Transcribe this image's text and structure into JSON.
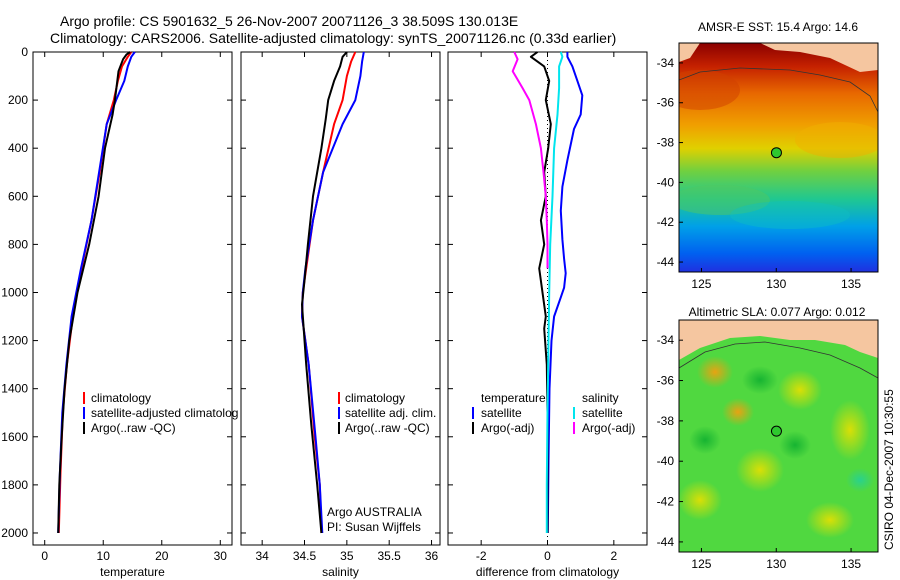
{
  "header": {
    "line1": "Argo profile: CS 5901632_5 26-Nov-2007 20071126_3 38.509S 130.013E",
    "line2": "Climatology: CARS2006. Satellite-adjusted climatology: synTS_20071126.nc (0.33d earlier)"
  },
  "side_label": "CSIRO 04-Dec-2007 10:30:55",
  "colors": {
    "climatology": "#ff0000",
    "satellite": "#0000ff",
    "argo": "#000000",
    "salinity_satellite": "#00e5ee",
    "salinity_argo": "#ff00ff",
    "land": "#f5c6a0"
  },
  "chart_data": [
    {
      "type": "line",
      "id": "temperature",
      "xlabel": "temperature",
      "ylabel": "",
      "xlim": [
        -2,
        32
      ],
      "ylim": [
        0,
        2050
      ],
      "y_reversed": true,
      "xticks": [
        0,
        10,
        20,
        30
      ],
      "yticks": [
        0,
        200,
        400,
        600,
        800,
        1000,
        1200,
        1400,
        1600,
        1800,
        2000
      ],
      "legend": [
        "climatology",
        "satellite-adjusted climatolog",
        "Argo(..raw -QC)"
      ],
      "series": [
        {
          "name": "climatology",
          "color": "#ff0000",
          "x": [
            14.8,
            14.2,
            13.2,
            12.5,
            11.8,
            10.6,
            9.4,
            8.0,
            6.3,
            4.8,
            3.8,
            3.1,
            2.7,
            2.4
          ],
          "y": [
            0,
            20,
            60,
            120,
            200,
            300,
            500,
            700,
            900,
            1100,
            1300,
            1500,
            1750,
            2000
          ]
        },
        {
          "name": "satellite-adjusted climatolog",
          "color": "#0000ff",
          "x": [
            15.4,
            14.8,
            14.2,
            13.6,
            12.2,
            10.6,
            9.3,
            8.0,
            6.2,
            4.6,
            3.7,
            3.0,
            2.6,
            2.3
          ],
          "y": [
            0,
            20,
            60,
            120,
            200,
            300,
            500,
            700,
            900,
            1100,
            1300,
            1500,
            1750,
            2000
          ]
        },
        {
          "name": "Argo(..raw -QC)",
          "color": "#000000",
          "x": [
            14.6,
            14.0,
            13.4,
            12.6,
            12.0,
            11.6,
            10.3,
            9.2,
            7.6,
            5.6,
            4.2,
            3.4,
            2.9,
            2.5,
            2.3
          ],
          "y": [
            0,
            10,
            30,
            80,
            200,
            260,
            400,
            600,
            800,
            1000,
            1200,
            1400,
            1600,
            1800,
            2000
          ]
        }
      ]
    },
    {
      "type": "line",
      "id": "salinity",
      "xlabel": "salinity",
      "ylabel": "",
      "xlim": [
        33.75,
        36.1
      ],
      "ylim": [
        0,
        2050
      ],
      "y_reversed": true,
      "xticks": [
        34,
        34.5,
        35,
        35.5,
        36
      ],
      "legend": [
        "climatology",
        "satellite adj. clim.",
        "Argo(..raw -QC)"
      ],
      "annotation": [
        "Argo AUSTRALIA",
        "PI: Susan Wijffels"
      ],
      "series": [
        {
          "name": "climatology",
          "color": "#ff0000",
          "x": [
            35.1,
            35.05,
            35.0,
            34.95,
            34.85,
            34.72,
            34.6,
            34.52,
            34.48,
            34.47,
            34.55,
            34.62,
            34.68,
            34.7
          ],
          "y": [
            0,
            40,
            100,
            200,
            300,
            500,
            700,
            900,
            1000,
            1100,
            1300,
            1600,
            1800,
            2000
          ]
        },
        {
          "name": "satellite adj. clim.",
          "color": "#0000ff",
          "x": [
            35.2,
            35.18,
            35.16,
            35.1,
            34.95,
            34.72,
            34.6,
            34.51,
            34.48,
            34.47,
            34.55,
            34.63,
            34.68,
            34.71
          ],
          "y": [
            0,
            40,
            100,
            200,
            300,
            500,
            700,
            900,
            1000,
            1100,
            1300,
            1600,
            1800,
            2000
          ]
        },
        {
          "name": "Argo(..raw -QC)",
          "color": "#000000",
          "x": [
            35.0,
            34.95,
            34.92,
            34.85,
            34.78,
            34.75,
            34.7,
            34.6,
            34.54,
            34.5,
            34.47,
            34.52,
            34.58,
            34.65,
            34.7
          ],
          "y": [
            0,
            20,
            60,
            120,
            200,
            280,
            400,
            600,
            800,
            950,
            1050,
            1300,
            1550,
            1800,
            2000
          ]
        }
      ]
    },
    {
      "type": "line",
      "id": "difference",
      "xlabel": "difference from climatology",
      "ylabel": "",
      "xlim": [
        -3,
        3
      ],
      "ylim": [
        0,
        2050
      ],
      "y_reversed": true,
      "xticks": [
        -2,
        0,
        2
      ],
      "zero_line": true,
      "legend_left_title": "temperature",
      "legend_right_title": "salinity",
      "legend": [
        "satellite",
        "Argo(-adj)",
        "satellite",
        "Argo(-adj)"
      ],
      "series": [
        {
          "name": "temperature satellite",
          "color": "#0000ff",
          "x": [
            0.6,
            0.6,
            0.75,
            0.9,
            1.05,
            1.0,
            0.8,
            0.6,
            0.45,
            0.4,
            0.45,
            0.5,
            0.55,
            0.5,
            0.4,
            0.2,
            0.12,
            0.06,
            0.03,
            0.01
          ],
          "y": [
            0,
            20,
            60,
            120,
            180,
            260,
            320,
            450,
            560,
            660,
            780,
            860,
            920,
            980,
            1020,
            1100,
            1200,
            1400,
            1700,
            2000
          ]
        },
        {
          "name": "temperature Argo(-adj)",
          "color": "#000000",
          "x": [
            -0.3,
            -0.5,
            -0.3,
            -0.1,
            0.05,
            -0.05,
            0.1,
            0.02,
            -0.1,
            -0.05,
            -0.2,
            -0.1,
            -0.25,
            -0.15,
            -0.05,
            -0.1,
            -0.02,
            0.0,
            0.0
          ],
          "y": [
            0,
            20,
            40,
            60,
            120,
            200,
            300,
            400,
            500,
            600,
            700,
            800,
            900,
            1000,
            1100,
            1150,
            1300,
            1500,
            2000
          ]
        },
        {
          "name": "salinity satellite",
          "color": "#00e5ee",
          "x": [
            0.4,
            0.45,
            0.35,
            0.35,
            0.3,
            0.2,
            0.15,
            0.08,
            0.05,
            0.03,
            0.0,
            -0.02,
            -0.02
          ],
          "y": [
            0,
            20,
            60,
            150,
            260,
            400,
            600,
            800,
            1000,
            1200,
            1500,
            1800,
            2000
          ]
        },
        {
          "name": "salinity Argo(-adj)",
          "color": "#ff00ff",
          "x": [
            -1.0,
            -0.9,
            -1.05,
            -0.75,
            -0.55,
            -0.35,
            -0.2,
            -0.12,
            -0.05,
            -0.02,
            0.0,
            0.0
          ],
          "y": [
            0,
            30,
            80,
            150,
            200,
            300,
            400,
            500,
            600,
            700,
            800,
            900
          ]
        }
      ]
    },
    {
      "type": "heatmap",
      "id": "sst_map",
      "title": "AMSR-E SST: 15.4 Argo: 14.6",
      "xlim": [
        123.5,
        136.8
      ],
      "ylim": [
        -44.5,
        -33.0
      ],
      "xticks": [
        125,
        130,
        135
      ],
      "yticks": [
        -34,
        -36,
        -38,
        -40,
        -42,
        -44
      ],
      "marker": {
        "lon": 130.013,
        "lat": -38.509
      }
    },
    {
      "type": "heatmap",
      "id": "sla_map",
      "title": "Altimetric SLA: 0.077 Argo: 0.012",
      "xlim": [
        123.5,
        136.8
      ],
      "ylim": [
        -44.5,
        -33.0
      ],
      "xticks": [
        125,
        130,
        135
      ],
      "yticks": [
        -34,
        -36,
        -38,
        -40,
        -42,
        -44
      ],
      "marker": {
        "lon": 130.013,
        "lat": -38.509
      }
    }
  ]
}
